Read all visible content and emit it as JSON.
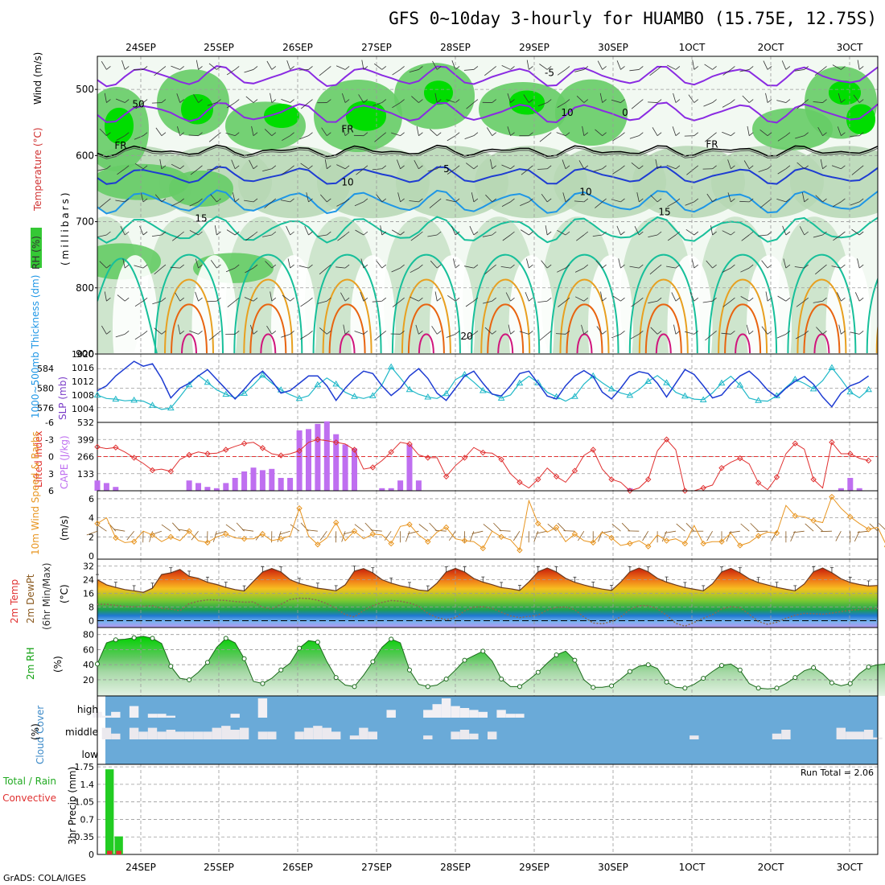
{
  "title": "GFS 0~10day 3-hourly for HUAMBO (15.75E, 12.75S)",
  "credit": "GrADS: COLA/IGES",
  "run_total_text": "Run Total = 2.06",
  "colors": {
    "rh_light": "#e8f5e8",
    "rh_mid": "#b6d7b4",
    "rh_green": "#66cc66",
    "rh_bright": "#00dd00",
    "temp_purple": "#8a2be2",
    "temp_blue": "#1e3cd2",
    "temp_lightblue": "#1e96e6",
    "temp_teal": "#17bf9a",
    "temp_orange": "#e8a020",
    "temp_darkorange": "#e86410",
    "temp_magenta": "#d0147c",
    "thickness": "#1e3cd2",
    "slp": "#20b8c8",
    "lifted_index": "#e03030",
    "cape": "#bf6ff0",
    "wind": "#e89520",
    "rh2m": "#10a010",
    "cloud": "#6aaad8",
    "precip_total": "#22cc22",
    "precip_conv": "#e03030"
  },
  "chart_data": [
    {
      "type": "contour",
      "panel": "upper_air",
      "labels": {
        "rh": "RH (%)",
        "temperature": "Temperature (°C)",
        "wind": "Wind (m/s)",
        "yunit": "(millibars)"
      },
      "yticks": [
        "500",
        "600",
        "700",
        "800",
        "900"
      ],
      "y_range_mb": [
        450,
        900
      ],
      "contour_labels": [
        "-5",
        "0",
        "FR",
        "FR",
        "FR",
        "5",
        "10",
        "10",
        "15",
        "15",
        "20",
        "50",
        "10"
      ],
      "temperature_levels_c": [
        -5,
        0,
        5,
        10,
        15,
        20,
        25,
        30
      ]
    },
    {
      "type": "line",
      "panel": "thickness_slp",
      "labels": {
        "thickness": "1000~500mb Thickness (dm)",
        "slp": "SLP (mb)"
      },
      "left_ticks": [
        "584",
        "580",
        "576"
      ],
      "right_ticks": [
        "1020",
        "1016",
        "1012",
        "1008",
        "1004"
      ],
      "series": [
        {
          "name": "thickness",
          "axis": "left",
          "values": [
            579.5,
            580.5,
            582.5,
            584,
            585.5,
            584.5,
            585,
            582,
            578,
            580,
            581,
            582.5,
            583.8,
            581.8,
            579.8,
            577.8,
            579.8,
            582,
            583.5,
            581.5,
            579,
            579.5,
            581,
            582.5,
            582.5,
            580.5,
            577.5,
            580,
            582,
            583.5,
            583,
            580.5,
            578.5,
            580,
            582.5,
            584,
            582,
            579,
            577.5,
            580,
            582.5,
            583.5,
            581,
            578.8,
            578.4,
            580.5,
            583,
            583.5,
            581,
            578.4,
            577.8,
            580.5,
            582.5,
            583.6,
            582.4,
            579.2,
            577.8,
            580,
            582.5,
            583.4,
            583,
            581,
            578.2,
            581,
            583.8,
            582.8,
            580.5,
            578,
            578.6,
            580.8,
            582.5,
            583.5,
            581.8,
            579.6,
            578.2,
            580,
            581.4,
            582.4,
            580.8,
            578.2,
            576.2,
            579,
            580.5,
            581.2,
            582.5
          ]
        },
        {
          "name": "slp",
          "axis": "right",
          "values": [
            1008,
            1007,
            1006.8,
            1006.3,
            1006.5,
            1006.2,
            1005,
            1003.8,
            1004.2,
            1007.5,
            1011,
            1013.8,
            1011.7,
            1009.5,
            1008.2,
            1007.2,
            1008.5,
            1011,
            1013.8,
            1011.5,
            1009.5,
            1008.1,
            1007,
            1007.8,
            1011,
            1013,
            1011.2,
            1008.8,
            1007.6,
            1007,
            1007.8,
            1011,
            1016.2,
            1013,
            1009.6,
            1008.2,
            1007.4,
            1007,
            1008.4,
            1012.5,
            1014,
            1011.8,
            1009.3,
            1008.4,
            1007.1,
            1008,
            1011.5,
            1013.5,
            1011.6,
            1008.8,
            1007.5,
            1006.2,
            1007.6,
            1011.2,
            1013.6,
            1011.6,
            1009.8,
            1008.6,
            1007.9,
            1009.6,
            1012,
            1013.7,
            1011.6,
            1008.8,
            1007.7,
            1006.8,
            1006.6,
            1008.6,
            1011.5,
            1013.5,
            1010.9,
            1007.1,
            1006.4,
            1006.2,
            1007.8,
            1010.2,
            1012.6,
            1011.4,
            1009.8,
            1012.2,
            1016,
            1012.6,
            1008.9,
            1007.2,
            1009.6
          ]
        }
      ]
    },
    {
      "type": "bar+line",
      "panel": "cape_lifted_index",
      "labels": {
        "lifted_index": "Lifted Index",
        "cape": "CAPE (J/kg)"
      },
      "li_ticks": [
        "-6",
        "-3",
        "0",
        "3",
        "6"
      ],
      "cape_ticks": [
        "532",
        "399",
        "266",
        "133"
      ],
      "series": [
        {
          "name": "cape",
          "axis": "right",
          "values": [
            80,
            60,
            30,
            0,
            0,
            0,
            0,
            0,
            0,
            0,
            80,
            60,
            30,
            20,
            60,
            100,
            150,
            180,
            160,
            170,
            100,
            100,
            470,
            480,
            520,
            540,
            440,
            360,
            330,
            0,
            0,
            20,
            20,
            80,
            360,
            80,
            0,
            0,
            0,
            0,
            0,
            0,
            0,
            0,
            0,
            0,
            0,
            0,
            0,
            0,
            0,
            0,
            0,
            0,
            0,
            0,
            0,
            0,
            20,
            0,
            0,
            0,
            0,
            0,
            0,
            0,
            0,
            0,
            0,
            0,
            0,
            0,
            0,
            0,
            0,
            0,
            0,
            0,
            0,
            0,
            0,
            20,
            100,
            20,
            0
          ]
        },
        {
          "name": "lifted_index",
          "axis": "left",
          "values": [
            -1.7,
            -1.4,
            -1.6,
            -0.8,
            0.2,
            1.2,
            2.4,
            2.2,
            2.6,
            0.5,
            -0.3,
            -0.8,
            -0.5,
            -0.6,
            -1.2,
            -1.8,
            -2.3,
            -2.5,
            -1.5,
            -0.5,
            -0.2,
            -0.5,
            -1,
            -2.5,
            -3,
            -2.8,
            -2.5,
            -2.2,
            -1.2,
            2.2,
            1.9,
            0.7,
            -0.8,
            -2.5,
            -2.2,
            -0.3,
            0.2,
            0.2,
            3.5,
            1.6,
            0.2,
            -1.6,
            -0.7,
            -0.6,
            0.5,
            3,
            4.5,
            5.5,
            4,
            2,
            3.5,
            4.5,
            2.5,
            -0.2,
            -1.2,
            2.2,
            4,
            4.5,
            6,
            5.5,
            4,
            -1,
            -3,
            -1.2,
            6,
            6,
            5.5,
            5,
            2,
            1,
            0.3,
            1.3,
            4.6,
            5.8,
            3.6,
            -0.5,
            -2.3,
            -1.3,
            4,
            5.5,
            -2.5,
            -0.5,
            -0.5,
            0.3,
            0.7
          ]
        }
      ]
    },
    {
      "type": "line",
      "panel": "wind10m",
      "labels": {
        "main": "10m Wind Speed & Barbs",
        "unit": "(m/s)"
      },
      "yticks": [
        "6",
        "4",
        "2",
        "0"
      ],
      "series": [
        {
          "name": "speed",
          "values": [
            3.4,
            4,
            1.9,
            1.4,
            1.5,
            2.6,
            2.2,
            1.5,
            2,
            1.6,
            2.6,
            1.6,
            1.4,
            2,
            2.3,
            1.9,
            1.8,
            1.8,
            2.3,
            1.6,
            1.8,
            2.1,
            5,
            2.1,
            1.2,
            1.9,
            3.5,
            1.6,
            2.6,
            1.8,
            2.3,
            2.2,
            1.3,
            3.1,
            3.3,
            2.2,
            1.5,
            2.5,
            3,
            1.8,
            1.6,
            1.5,
            0.8,
            2.6,
            2,
            1.7,
            0.6,
            5.8,
            3.4,
            2.5,
            3,
            1.5,
            2.3,
            1.6,
            1.4,
            2.5,
            1.9,
            1.1,
            1.3,
            1.6,
            1,
            2.2,
            1.6,
            1.8,
            1.3,
            3.2,
            1.3,
            1.5,
            1.5,
            2.4,
            1.1,
            1.4,
            2.1,
            2.5,
            2.4,
            5.3,
            4.2,
            4.1,
            3.7,
            3.5,
            6.2,
            5,
            4.1,
            3.4,
            2.8,
            3,
            1,
            0.2
          ]
        }
      ]
    },
    {
      "type": "area+line",
      "panel": "temp2m",
      "labels": {
        "temp": "2m Temp",
        "dewpt": "2m DewPt",
        "minmax": "(6hr Min/Max)",
        "unit": "(°C)"
      },
      "yticks": [
        "32",
        "24",
        "16",
        "8",
        "0"
      ],
      "series": [
        {
          "name": "temp2m",
          "values": [
            24,
            21,
            19.5,
            18.2,
            17.5,
            16.6,
            19,
            27,
            28,
            30,
            26,
            24.8,
            22.5,
            21.2,
            19.5,
            18.2,
            17.4,
            23,
            28.5,
            30.5,
            28.5,
            24,
            21.8,
            20.4,
            19,
            18.3,
            17.5,
            21,
            29,
            30.5,
            28,
            24,
            22,
            20.4,
            19.4,
            18,
            17.4,
            22,
            28.5,
            30.6,
            28.5,
            24.7,
            22.6,
            21.1,
            19.4,
            18.7,
            17.7,
            22.7,
            28.6,
            30.8,
            28.5,
            24.8,
            22.5,
            20.9,
            19.6,
            18.5,
            17.7,
            22.6,
            28.6,
            30.8,
            28.6,
            24.8,
            22.6,
            20.9,
            19.4,
            18.4,
            17.5,
            21.6,
            28.5,
            30.6,
            28,
            24.5,
            22.3,
            20.9,
            19.5,
            18.4,
            17.5,
            21.5,
            28.6,
            30.8,
            28.1,
            24.5,
            22.4,
            21.2,
            20.3,
            20.6
          ]
        },
        {
          "name": "dewpt2m",
          "values": [
            9.6,
            9.6,
            9,
            8.4,
            8.2,
            8.5,
            8.8,
            7.2,
            6.8,
            5.9,
            10,
            11.4,
            12.2,
            12.1,
            11.8,
            11.2,
            10.8,
            11,
            7.8,
            6.8,
            9.6,
            12.4,
            13.2,
            13,
            12,
            10,
            7.2,
            3.6,
            2.2,
            6,
            8.8,
            10.7,
            11.8,
            11.4,
            10.4,
            8.5,
            4.3,
            1.9,
            0.6,
            1.8,
            5.8,
            8,
            8.2,
            7.2,
            5,
            2.8,
            1.8,
            2.6,
            3.3,
            6.3,
            7.8,
            8,
            6.5,
            2.1,
            -1.3,
            -1.8,
            -0.5,
            2.3,
            6.6,
            8.8,
            8.8,
            6.9,
            3.3,
            -1.5,
            -3.2,
            -1,
            1.4,
            3.6,
            6.8,
            8.3,
            7.6,
            3.8,
            -0.4,
            -2.1,
            -0.9,
            1.4,
            3.2,
            4.3,
            4.1,
            3.8,
            4.4,
            5.3,
            6.1,
            6.6,
            7,
            7.1
          ]
        }
      ]
    },
    {
      "type": "area",
      "panel": "rh2m",
      "labels": {
        "main": "2m RH",
        "unit": "(%)"
      },
      "yticks": [
        "80",
        "60",
        "40",
        "20"
      ],
      "series": [
        {
          "name": "rh2m",
          "values": [
            41,
            69,
            73,
            73.8,
            75.8,
            77.6,
            75,
            68,
            38,
            22,
            20,
            30,
            43,
            63,
            75,
            69,
            48,
            18,
            15,
            22,
            33,
            42,
            62,
            72,
            70,
            44,
            23,
            13,
            11,
            26,
            44,
            63,
            74,
            69,
            33,
            14,
            11,
            13,
            21,
            33,
            46,
            52,
            58,
            45,
            21,
            11,
            11,
            20,
            30,
            42,
            53,
            58,
            46,
            20,
            10,
            10,
            12,
            21,
            31,
            38,
            40,
            35,
            17,
            10,
            9,
            14,
            22,
            31,
            39,
            41,
            33,
            15,
            9,
            8,
            9,
            15,
            23,
            32,
            36,
            28,
            16,
            12,
            15,
            28,
            37,
            40,
            41
          ]
        }
      ]
    },
    {
      "type": "bar",
      "panel": "cloud_cover",
      "labels": {
        "main": "Cloud Cover",
        "unit": "(%)",
        "high": "high",
        "middle": "middle",
        "low": "low"
      },
      "series": [
        {
          "name": "high",
          "values": [
            30,
            10,
            30,
            0,
            60,
            0,
            20,
            20,
            10,
            0,
            0,
            0,
            0,
            0,
            0,
            20,
            0,
            0,
            100,
            0,
            0,
            0,
            0,
            0,
            0,
            0,
            0,
            0,
            0,
            0,
            0,
            0,
            40,
            0,
            0,
            0,
            40,
            70,
            100,
            60,
            50,
            40,
            30,
            0,
            40,
            20,
            20,
            0,
            0,
            0,
            0,
            0,
            0,
            0,
            0,
            0,
            0,
            0,
            0,
            0,
            0,
            0,
            0,
            0,
            0,
            0,
            0,
            0,
            0,
            0,
            0,
            0,
            0,
            0,
            0,
            0,
            0,
            0,
            0,
            0,
            0,
            0,
            0,
            0,
            0,
            0
          ]
        },
        {
          "name": "middle",
          "values": [
            0,
            60,
            30,
            0,
            60,
            40,
            60,
            40,
            50,
            40,
            40,
            40,
            40,
            60,
            70,
            50,
            60,
            0,
            40,
            40,
            0,
            0,
            40,
            60,
            70,
            60,
            40,
            0,
            20,
            60,
            40,
            0,
            0,
            0,
            0,
            0,
            20,
            0,
            0,
            40,
            50,
            30,
            0,
            40,
            0,
            0,
            0,
            0,
            0,
            0,
            0,
            0,
            0,
            0,
            0,
            0,
            0,
            0,
            0,
            0,
            0,
            0,
            0,
            0,
            0,
            20,
            0,
            0,
            0,
            0,
            0,
            0,
            0,
            0,
            30,
            50,
            0,
            0,
            0,
            0,
            0,
            60,
            40,
            40,
            50,
            10
          ]
        }
      ]
    },
    {
      "type": "bar",
      "panel": "precip3hr",
      "labels": {
        "total": "Total / Rain",
        "convective": "Convective",
        "main": "3hr Precip (mm)"
      },
      "yticks": [
        "1.75",
        "1.4",
        "1.05",
        "0.7",
        "0.35",
        "0"
      ],
      "series": [
        {
          "name": "total",
          "values": [
            1.7,
            0.36
          ]
        },
        {
          "name": "convective",
          "values": [
            0.04,
            0.04
          ]
        }
      ]
    }
  ],
  "xaxis": {
    "labels_top": [
      "24SEP",
      "25SEP",
      "26SEP",
      "27SEP",
      "28SEP",
      "29SEP",
      "30SEP",
      "1OCT",
      "2OCT",
      "3OCT"
    ],
    "labels_bottom": [
      "24SEP",
      "25SEP",
      "26SEP",
      "27SEP",
      "28SEP",
      "29SEP",
      "30SEP",
      "1OCT",
      "2OCT",
      "3OCT"
    ]
  }
}
